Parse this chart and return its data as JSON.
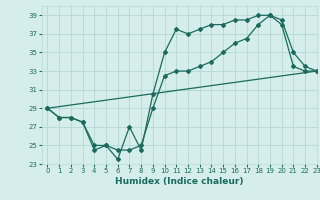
{
  "line1_x": [
    0,
    1,
    2,
    3,
    4,
    5,
    6,
    7,
    8,
    9,
    10,
    11,
    12,
    13,
    14,
    15,
    16,
    17,
    18,
    19,
    20,
    21,
    22,
    23
  ],
  "line1_y": [
    29,
    28,
    28,
    27.5,
    24.5,
    25,
    23.5,
    27,
    24.5,
    30.5,
    35,
    37.5,
    37,
    37.5,
    38,
    38,
    38.5,
    38.5,
    39,
    39,
    38.5,
    35,
    33.5,
    33
  ],
  "line2_x": [
    0,
    1,
    2,
    3,
    4,
    5,
    6,
    7,
    8,
    9,
    10,
    11,
    12,
    13,
    14,
    15,
    16,
    17,
    18,
    19,
    20,
    21,
    22,
    23
  ],
  "line2_y": [
    29,
    28,
    28,
    27.5,
    25,
    25,
    24.5,
    24.5,
    25,
    29,
    32.5,
    33,
    33,
    33.5,
    34,
    35,
    36,
    36.5,
    38,
    39,
    38,
    33.5,
    33,
    33
  ],
  "line3_x": [
    0,
    23
  ],
  "line3_y": [
    29,
    33
  ],
  "line_color": "#1a6b5e",
  "bg_color": "#d5eeec",
  "grid_color": "#b8dbd8",
  "xlabel": "Humidex (Indice chaleur)",
  "ylim": [
    23,
    40
  ],
  "xlim": [
    -0.5,
    23
  ],
  "yticks": [
    23,
    25,
    27,
    29,
    31,
    33,
    35,
    37,
    39
  ],
  "xticks": [
    0,
    1,
    2,
    3,
    4,
    5,
    6,
    7,
    8,
    9,
    10,
    11,
    12,
    13,
    14,
    15,
    16,
    17,
    18,
    19,
    20,
    21,
    22,
    23
  ]
}
